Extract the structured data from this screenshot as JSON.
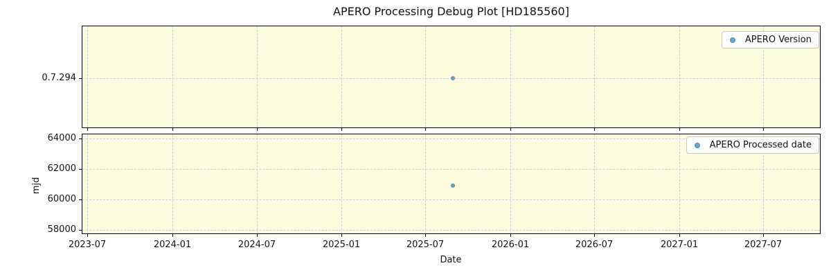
{
  "title": "APERO Processing Debug Plot [HD185560]",
  "colors": {
    "plot_background": "#fcfbe0",
    "figure_background": "#ffffff",
    "marker_fill": "#67a4cb",
    "marker_edge": "#4f8fbc",
    "grid": "#cdced8",
    "axis": "#000000",
    "legend_border": "#c9c9c9",
    "legend_background": "#ffffff"
  },
  "chart_data": [
    {
      "type": "scatter",
      "subplot": "top",
      "legend": [
        "APERO Version"
      ],
      "legend_position": "upper right",
      "x": [
        "2025-08-29"
      ],
      "y": [
        "0.7.294"
      ],
      "y_axis": {
        "type": "categorical",
        "ticks": [
          "0.7.294"
        ]
      },
      "grid": true
    },
    {
      "type": "scatter",
      "subplot": "bottom",
      "legend": [
        "APERO Processed date"
      ],
      "legend_position": "upper right",
      "xlabel": "Date",
      "ylabel": "mjd",
      "x": [
        "2025-08-29"
      ],
      "y": [
        60916
      ],
      "y_axis": {
        "type": "linear",
        "ticks": [
          58000,
          60000,
          62000,
          64000
        ],
        "lim": [
          57720,
          64320
        ]
      },
      "x_axis": {
        "tick_labels": [
          "2023-07",
          "2024-01",
          "2024-07",
          "2025-01",
          "2025-07",
          "2026-01",
          "2026-07",
          "2027-01",
          "2027-07"
        ],
        "tick_dates": [
          "2023-07-01",
          "2024-01-01",
          "2024-07-01",
          "2025-01-01",
          "2025-07-01",
          "2026-01-01",
          "2026-07-01",
          "2027-01-01",
          "2027-07-01"
        ],
        "lim": [
          "2023-06-19",
          "2027-11-02"
        ]
      },
      "grid": true
    }
  ]
}
